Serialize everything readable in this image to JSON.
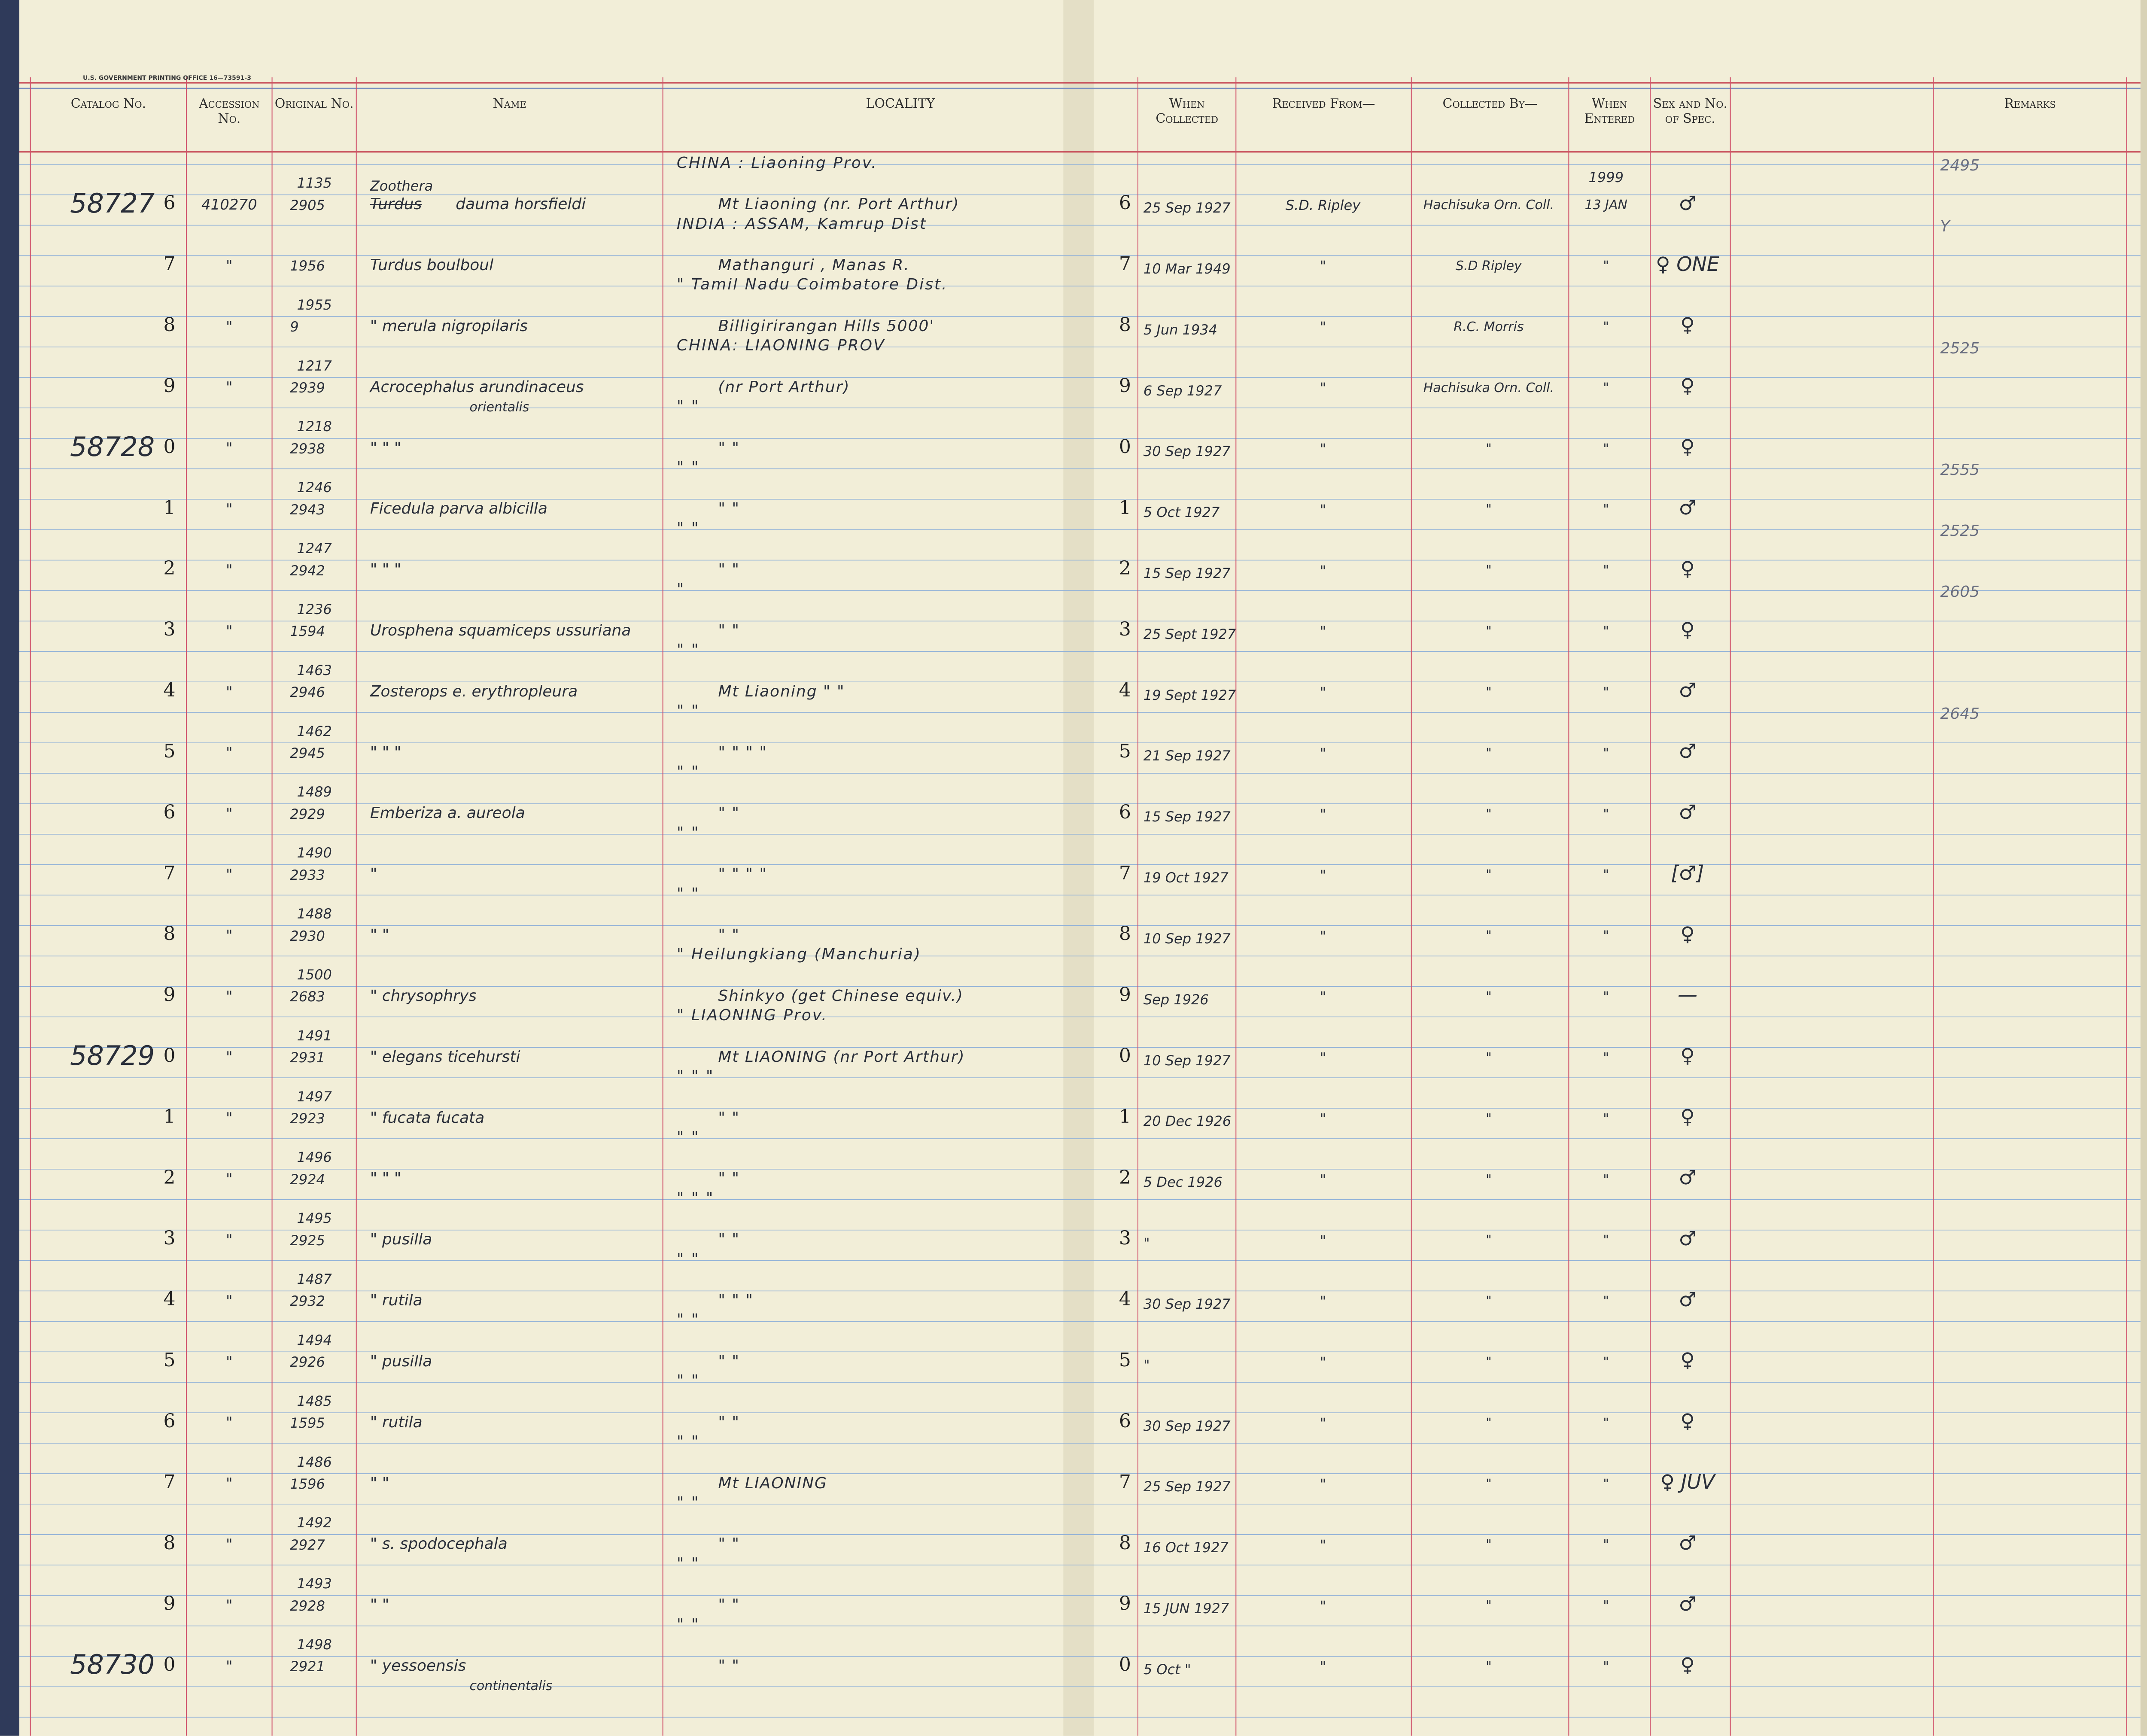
{
  "printer": "U.S. GOVERNMENT PRINTING OFFICE 16—73591-3",
  "headers": {
    "catalog": "Catalog No.",
    "accession": "Accession No.",
    "original": "Original No.",
    "name": "Name",
    "locality": "LOCALITY",
    "collected": "When Collected",
    "received": "Received From—",
    "collected_by": "Collected By—",
    "entered": "When Entered",
    "sex": "Sex and No. of Spec.",
    "remarks": "Remarks"
  },
  "rows": [
    {
      "prefix": "58727",
      "digit": "6",
      "accession": "410270",
      "orig_top": "1135",
      "orig": "2905",
      "name_top": "Zoothera",
      "struck": "Turdus",
      "name": "dauma horsfieldi",
      "loc_top": "CHINA : Liaoning Prov.",
      "loc": "Mt Liaoning   (nr. Port Arthur)",
      "day": "6",
      "collected": "25 Sep 1927",
      "received": "S.D. Ripley",
      "by": "Hachisuka Orn. Coll.",
      "entered_top": "1999",
      "entered": "13 JAN",
      "sex": "♂",
      "remarks": "2495"
    },
    {
      "digit": "7",
      "accession": "\"",
      "orig": "1956",
      "name": "Turdus boulboul",
      "loc_top": "INDIA : ASSAM, Kamrup Dist",
      "loc": "Mathanguri , Manas R.",
      "day": "7",
      "collected": "10 Mar 1949",
      "received": "\"",
      "by": "S.D Ripley",
      "entered": "\"",
      "sex": "♀ ONE",
      "remarks": "Y"
    },
    {
      "digit": "8",
      "accession": "\"",
      "orig_top": "1955",
      "orig": "9",
      "name": "\"   merula nigropilaris",
      "loc_top": "\"  Tamil Nadu  Coimbatore Dist.",
      "loc": "Billigirirangan Hills 5000'",
      "day": "8",
      "collected": "5 Jun 1934",
      "received": "\"",
      "by": "R.C. Morris",
      "entered": "\"",
      "sex": "♀"
    },
    {
      "digit": "9",
      "accession": "\"",
      "orig_top": "1217",
      "orig": "2939",
      "name": "Acrocephalus arundinaceus",
      "name2": "orientalis",
      "loc_top": "CHINA:  LIAONING PROV",
      "loc": "(nr Port Arthur)",
      "day": "9",
      "collected": "6 Sep 1927",
      "received": "\"",
      "by": "Hachisuka Orn. Coll.",
      "entered": "\"",
      "sex": "♀",
      "remarks": "2525"
    },
    {
      "prefix": "58728",
      "digit": "0",
      "accession": "\"",
      "orig_top": "1218",
      "orig": "2938",
      "name": "\"     \"     \"",
      "loc_top": "\"     \"",
      "loc": "\"   \"",
      "day": "0",
      "collected": "30 Sep 1927",
      "received": "\"",
      "by": "\"",
      "entered": "\"",
      "sex": "♀"
    },
    {
      "digit": "1",
      "accession": "\"",
      "orig_top": "1246",
      "orig": "2943",
      "name": "Ficedula parva albicilla",
      "loc_top": "\"     \"",
      "loc": "\"   \"",
      "day": "1",
      "collected": "5 Oct 1927",
      "received": "\"",
      "by": "\"",
      "entered": "\"",
      "sex": "♂",
      "remarks": "2555"
    },
    {
      "digit": "2",
      "accession": "\"",
      "orig_top": "1247",
      "orig": "2942",
      "name": "\"     \"     \"",
      "loc_top": "\"     \"",
      "loc": "\"   \"",
      "day": "2",
      "collected": "15 Sep 1927",
      "received": "\"",
      "by": "\"",
      "entered": "\"",
      "sex": "♀",
      "remarks": "2525"
    },
    {
      "digit": "3",
      "accession": "\"",
      "orig_top": "1236",
      "orig": "1594",
      "name": "Urosphena squamiceps ussuriana",
      "loc_top": "\"",
      "loc": "\"   \"",
      "day": "3",
      "collected": "25 Sept 1927",
      "received": "\"",
      "by": "\"",
      "entered": "\"",
      "sex": "♀",
      "remarks": "2605"
    },
    {
      "digit": "4",
      "accession": "\"",
      "orig_top": "1463",
      "orig": "2946",
      "name": "Zosterops e. erythropleura",
      "loc_top": "\"     \"",
      "loc": "Mt Liaoning       \"   \"",
      "day": "4",
      "collected": "19 Sept 1927",
      "received": "\"",
      "by": "\"",
      "entered": "\"",
      "sex": "♂"
    },
    {
      "digit": "5",
      "accession": "\"",
      "orig_top": "1462",
      "orig": "2945",
      "name": "\"     \"     \"",
      "loc_top": "\"     \"",
      "loc": "\"   \"      \"   \"",
      "day": "5",
      "collected": "21 Sep 1927",
      "received": "\"",
      "by": "\"",
      "entered": "\"",
      "sex": "♂",
      "remarks": "2645"
    },
    {
      "digit": "6",
      "accession": "\"",
      "orig_top": "1489",
      "orig": "2929",
      "name": "Emberiza a. aureola",
      "loc_top": "\"     \"",
      "loc": "\"   \"",
      "day": "6",
      "collected": "15 Sep 1927",
      "received": "\"",
      "by": "\"",
      "entered": "\"",
      "sex": "♂"
    },
    {
      "digit": "7",
      "accession": "\"",
      "orig_top": "1490",
      "orig": "2933",
      "name": "\"",
      "loc_top": "\"     \"",
      "loc": "\"   \"      \"   \"",
      "day": "7",
      "collected": "19 Oct 1927",
      "received": "\"",
      "by": "\"",
      "entered": "\"",
      "sex": "[♂]"
    },
    {
      "digit": "8",
      "accession": "\"",
      "orig_top": "1488",
      "orig": "2930",
      "name": "\"     \"",
      "loc_top": "\"     \"",
      "loc": "\"   \"",
      "day": "8",
      "collected": "10 Sep 1927",
      "received": "\"",
      "by": "\"",
      "entered": "\"",
      "sex": "♀"
    },
    {
      "digit": "9",
      "accession": "\"",
      "orig_top": "1500",
      "orig": "2683",
      "name": "\"      chrysophrys",
      "loc_top": "\"  Heilungkiang (Manchuria)",
      "loc": "Shinkyo (get Chinese equiv.)",
      "day": "9",
      "collected": "Sep 1926",
      "received": "\"",
      "by": "\"",
      "entered": "\"",
      "sex": "—"
    },
    {
      "prefix": "58729",
      "digit": "0",
      "accession": "\"",
      "orig_top": "1491",
      "orig": "2931",
      "name": "\"   elegans ticehursti",
      "loc_top": "\"  LIAONING Prov.",
      "loc": "Mt LIAONING  (nr Port Arthur)",
      "day": "0",
      "collected": "10 Sep 1927",
      "received": "\"",
      "by": "\"",
      "entered": "\"",
      "sex": "♀"
    },
    {
      "digit": "1",
      "accession": "\"",
      "orig_top": "1497",
      "orig": "2923",
      "name": "\"    fucata fucata",
      "loc_top": "\"     \"     \"",
      "loc": "\"   \"",
      "day": "1",
      "collected": "20 Dec 1926",
      "received": "\"",
      "by": "\"",
      "entered": "\"",
      "sex": "♀"
    },
    {
      "digit": "2",
      "accession": "\"",
      "orig_top": "1496",
      "orig": "2924",
      "name": "\"     \"     \"",
      "loc_top": "\"     \"",
      "loc": "\"   \"",
      "day": "2",
      "collected": "5 Dec 1926",
      "received": "\"",
      "by": "\"",
      "entered": "\"",
      "sex": "♂"
    },
    {
      "digit": "3",
      "accession": "\"",
      "orig_top": "1495",
      "orig": "2925",
      "name": "\"    pusilla",
      "loc_top": "\"     \"     \"",
      "loc": "\"   \"",
      "day": "3",
      "collected": "\"",
      "received": "\"",
      "by": "\"",
      "entered": "\"",
      "sex": "♂"
    },
    {
      "digit": "4",
      "accession": "\"",
      "orig_top": "1487",
      "orig": "2932",
      "name": "\"    rutila",
      "loc_top": "\"     \"",
      "loc": "\"   \"   \"",
      "day": "4",
      "collected": "30 Sep 1927",
      "received": "\"",
      "by": "\"",
      "entered": "\"",
      "sex": "♂"
    },
    {
      "digit": "5",
      "accession": "\"",
      "orig_top": "1494",
      "orig": "2926",
      "name": "\"    pusilla",
      "loc_top": "\"     \"",
      "loc": "\"   \"",
      "day": "5",
      "collected": "\"",
      "received": "\"",
      "by": "\"",
      "entered": "\"",
      "sex": "♀"
    },
    {
      "digit": "6",
      "accession": "\"",
      "orig_top": "1485",
      "orig": "1595",
      "name": "\"    rutila",
      "loc_top": "\"     \"",
      "loc": "\"   \"",
      "day": "6",
      "collected": "30 Sep 1927",
      "received": "\"",
      "by": "\"",
      "entered": "\"",
      "sex": "♀"
    },
    {
      "digit": "7",
      "accession": "\"",
      "orig_top": "1486",
      "orig": "1596",
      "name": "\"      \"",
      "loc_top": "\"     \"",
      "loc": "Mt LIAONING",
      "day": "7",
      "collected": "25 Sep 1927",
      "received": "\"",
      "by": "\"",
      "entered": "\"",
      "sex": "♀ JUV"
    },
    {
      "digit": "8",
      "accession": "\"",
      "orig_top": "1492",
      "orig": "2927",
      "name": "\"    s. spodocephala",
      "loc_top": "\"     \"",
      "loc": "\"   \"",
      "day": "8",
      "collected": "16 Oct 1927",
      "received": "\"",
      "by": "\"",
      "entered": "\"",
      "sex": "♂"
    },
    {
      "digit": "9",
      "accession": "\"",
      "orig_top": "1493",
      "orig": "2928",
      "name": "\"      \"",
      "loc_top": "\"     \"",
      "loc": "\"   \"",
      "day": "9",
      "collected": "15 JUN 1927",
      "received": "\"",
      "by": "\"",
      "entered": "\"",
      "sex": "♂"
    },
    {
      "prefix": "58730",
      "digit": "0",
      "accession": "\"",
      "orig_top": "1498",
      "orig": "2921",
      "name": "\"    yessoensis",
      "name2": "continentalis",
      "loc_top": "\"     \"",
      "loc": "\"   \"",
      "day": "0",
      "collected": "5 Oct \"",
      "received": "\"",
      "by": "\"",
      "entered": "\"",
      "sex": "♀"
    }
  ]
}
